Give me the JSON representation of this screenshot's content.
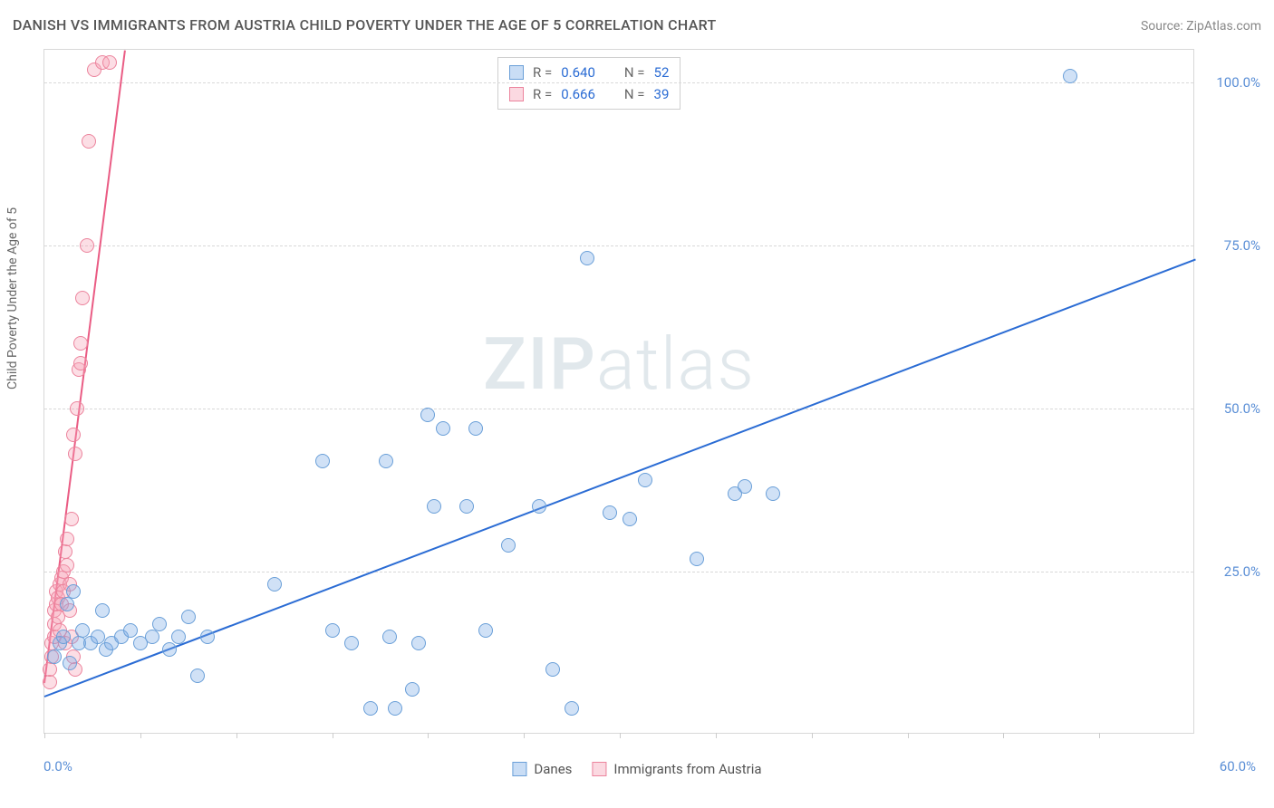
{
  "title": "DANISH VS IMMIGRANTS FROM AUSTRIA CHILD POVERTY UNDER THE AGE OF 5 CORRELATION CHART",
  "source_prefix": "Source: ",
  "source_site": "ZipAtlas.com",
  "y_axis_label": "Child Poverty Under the Age of 5",
  "watermark_a": "ZIP",
  "watermark_b": "atlas",
  "chart": {
    "type": "scatter",
    "xlim": [
      0,
      60
    ],
    "ylim": [
      0,
      105
    ],
    "y_ticks": [
      25,
      50,
      75,
      100
    ],
    "y_tick_labels": [
      "25.0%",
      "50.0%",
      "75.0%",
      "100.0%"
    ],
    "x_tick_positions": [
      0,
      5,
      10,
      15,
      20,
      25,
      30,
      35,
      40,
      45,
      50,
      55
    ],
    "x_min_label": "0.0%",
    "x_max_label": "60.0%",
    "background_color": "#ffffff",
    "grid_color": "#d8d8d8",
    "marker_size": 16,
    "series": {
      "danes": {
        "label": "Danes",
        "color_fill": "rgba(120,170,230,0.35)",
        "color_stroke": "#6a9fd8",
        "trend_color": "#2b6cd4",
        "R": "0.640",
        "N": "52",
        "trend": {
          "x1": 0,
          "y1": 6,
          "x2": 60,
          "y2": 73
        },
        "points": [
          [
            0.5,
            12
          ],
          [
            0.8,
            14
          ],
          [
            1.0,
            15
          ],
          [
            1.2,
            20
          ],
          [
            1.3,
            11
          ],
          [
            1.5,
            22
          ],
          [
            1.8,
            14
          ],
          [
            2.0,
            16
          ],
          [
            2.4,
            14
          ],
          [
            2.8,
            15
          ],
          [
            3.0,
            19
          ],
          [
            3.2,
            13
          ],
          [
            3.5,
            14
          ],
          [
            4.0,
            15
          ],
          [
            4.5,
            16
          ],
          [
            5.0,
            14
          ],
          [
            5.6,
            15
          ],
          [
            6.0,
            17
          ],
          [
            6.5,
            13
          ],
          [
            7.0,
            15
          ],
          [
            7.5,
            18
          ],
          [
            8.0,
            9
          ],
          [
            8.5,
            15
          ],
          [
            12.0,
            23
          ],
          [
            14.5,
            42
          ],
          [
            15.0,
            16
          ],
          [
            16.0,
            14
          ],
          [
            17.0,
            4
          ],
          [
            17.8,
            42
          ],
          [
            18.0,
            15
          ],
          [
            18.3,
            4
          ],
          [
            19.2,
            7
          ],
          [
            19.5,
            14
          ],
          [
            20.0,
            49
          ],
          [
            20.8,
            47
          ],
          [
            20.3,
            35
          ],
          [
            22.0,
            35
          ],
          [
            22.5,
            47
          ],
          [
            23.0,
            16
          ],
          [
            24.2,
            29
          ],
          [
            25.8,
            35
          ],
          [
            26.5,
            10
          ],
          [
            27.5,
            4
          ],
          [
            28.3,
            73
          ],
          [
            29.5,
            34
          ],
          [
            30.5,
            33
          ],
          [
            31.3,
            39
          ],
          [
            34.0,
            27
          ],
          [
            36.0,
            37
          ],
          [
            36.5,
            38
          ],
          [
            38.0,
            37
          ],
          [
            53.5,
            101
          ]
        ]
      },
      "austria": {
        "label": "Immigrants from Austria",
        "color_fill": "rgba(245,160,180,0.35)",
        "color_stroke": "#ec849d",
        "trend_color": "#ea5c84",
        "R": "0.666",
        "N": "39",
        "trend": {
          "x1": 0,
          "y1": 8,
          "x2": 4.2,
          "y2": 105
        },
        "points": [
          [
            0.3,
            8
          ],
          [
            0.3,
            10
          ],
          [
            0.4,
            12
          ],
          [
            0.4,
            14
          ],
          [
            0.5,
            15
          ],
          [
            0.5,
            17
          ],
          [
            0.5,
            19
          ],
          [
            0.6,
            20
          ],
          [
            0.6,
            22
          ],
          [
            0.7,
            21
          ],
          [
            0.7,
            18
          ],
          [
            0.8,
            23
          ],
          [
            0.8,
            16
          ],
          [
            0.9,
            24
          ],
          [
            0.9,
            20
          ],
          [
            1.0,
            25
          ],
          [
            1.0,
            22
          ],
          [
            1.1,
            14
          ],
          [
            1.1,
            28
          ],
          [
            1.2,
            30
          ],
          [
            1.2,
            26
          ],
          [
            1.3,
            23
          ],
          [
            1.3,
            19
          ],
          [
            1.4,
            15
          ],
          [
            1.4,
            33
          ],
          [
            1.5,
            12
          ],
          [
            1.5,
            46
          ],
          [
            1.6,
            10
          ],
          [
            1.6,
            43
          ],
          [
            1.7,
            50
          ],
          [
            1.8,
            56
          ],
          [
            1.9,
            57
          ],
          [
            1.9,
            60
          ],
          [
            2.0,
            67
          ],
          [
            2.2,
            75
          ],
          [
            2.3,
            91
          ],
          [
            2.6,
            102
          ],
          [
            3.0,
            103
          ],
          [
            3.4,
            103
          ]
        ]
      }
    }
  },
  "stats_label_R": "R =",
  "stats_label_N": "N ="
}
